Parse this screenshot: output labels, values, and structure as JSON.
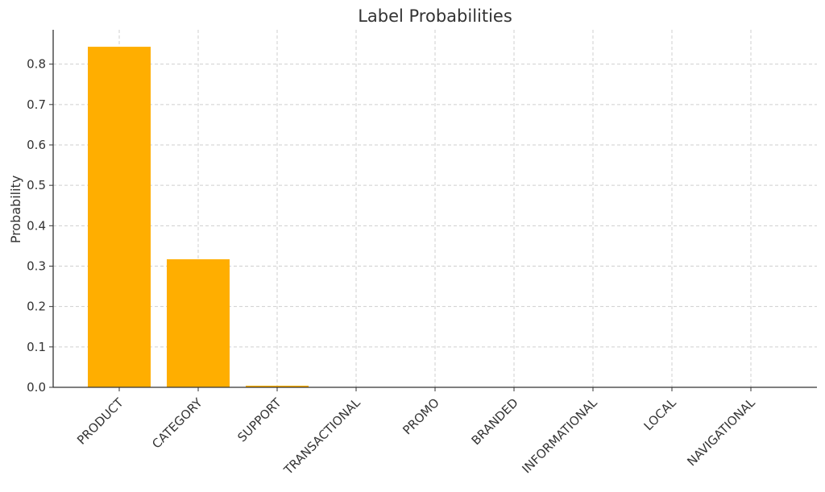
{
  "chart_data": {
    "type": "bar",
    "title": "Label Probabilities",
    "xlabel": "",
    "ylabel": "Probability",
    "categories": [
      "PRODUCT",
      "CATEGORY",
      "SUPPORT",
      "TRANSACTIONAL",
      "PROMO",
      "BRANDED",
      "INFORMATIONAL",
      "LOCAL",
      "NAVIGATIONAL"
    ],
    "values": [
      0.843,
      0.317,
      0.004,
      0.0,
      0.0,
      0.0,
      0.0,
      0.0,
      0.0
    ],
    "ylim": [
      0,
      0.885
    ],
    "yticks": [
      0.0,
      0.1,
      0.2,
      0.3,
      0.4,
      0.5,
      0.6,
      0.7,
      0.8
    ],
    "ytick_labels": [
      "0.0",
      "0.1",
      "0.2",
      "0.3",
      "0.4",
      "0.5",
      "0.6",
      "0.7",
      "0.8"
    ],
    "grid": true,
    "bar_color": "#FFAE00"
  }
}
